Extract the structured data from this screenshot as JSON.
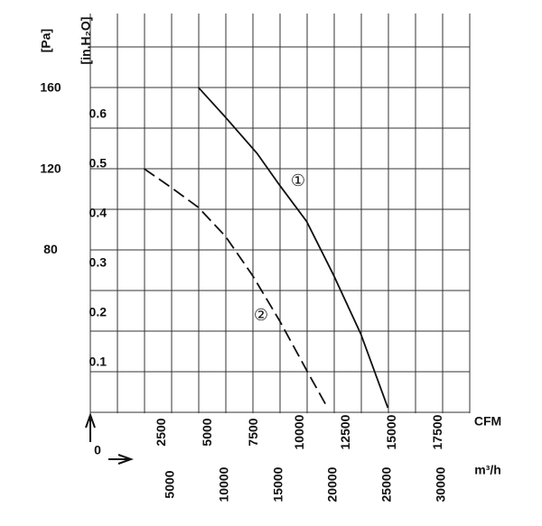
{
  "chart_data": {
    "type": "line",
    "y_label": "[in.H₂O]",
    "y2_label": "[Pa]",
    "x_label": "CFM",
    "x2_label": "m³/h",
    "origin_label": "0",
    "xlim": [
      -1400,
      19200
    ],
    "xticks": [
      2500,
      5000,
      7500,
      10000,
      12500,
      15000,
      17500
    ],
    "x2lim": [
      -2380,
      32620
    ],
    "x2ticks": [
      5000,
      10000,
      15000,
      20000,
      25000,
      30000
    ],
    "ylim": [
      0,
      0.8
    ],
    "yticks": [
      0.1,
      0.2,
      0.3,
      0.4,
      0.5,
      0.6
    ],
    "y2lim": [
      0,
      196
    ],
    "y2ticks": [
      80,
      120,
      160
    ],
    "grid": true,
    "series": [
      {
        "name": "①",
        "color": "#111111",
        "line_style": "solid",
        "x": [
          4461,
          5931,
          7647,
          8873,
          10343,
          11814,
          13284,
          14755
        ],
        "values": [
          0.655,
          0.595,
          0.522,
          0.458,
          0.385,
          0.276,
          0.158,
          0.009
        ]
      },
      {
        "name": "②",
        "color": "#111111",
        "line_style": "dashed",
        "x": [
          1520,
          2990,
          4461,
          5931,
          7402,
          8873,
          10343,
          11422
        ],
        "values": [
          0.491,
          0.453,
          0.413,
          0.355,
          0.276,
          0.185,
          0.085,
          0.013
        ]
      }
    ]
  }
}
